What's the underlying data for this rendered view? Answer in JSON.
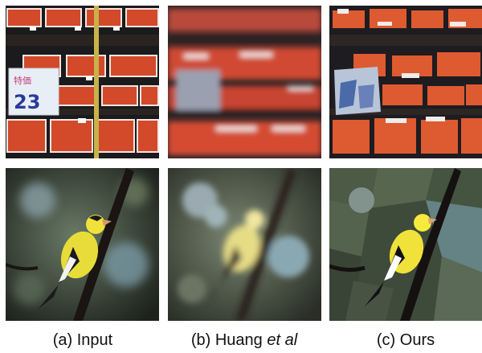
{
  "figure": {
    "columns": [
      {
        "id": "a",
        "label": "(a) Input"
      },
      {
        "id": "b",
        "label_main": "(b) Huang ",
        "label_italic": "et al"
      },
      {
        "id": "c",
        "label": "(c) Ours"
      }
    ],
    "rows": [
      {
        "id": "market",
        "content": "market-stall-photo"
      },
      {
        "id": "bird",
        "content": "goldfinch-on-branch-photo"
      }
    ],
    "sign_text": "23"
  }
}
